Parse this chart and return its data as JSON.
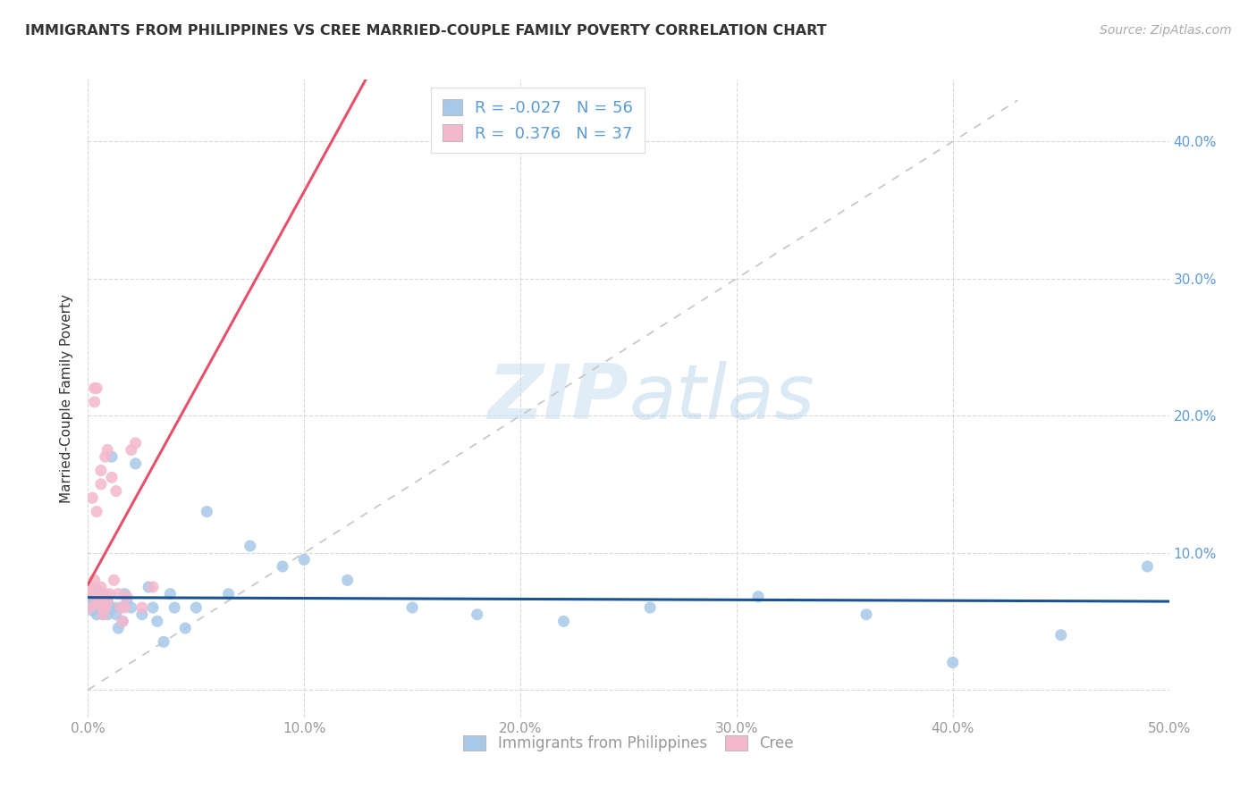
{
  "title": "IMMIGRANTS FROM PHILIPPINES VS CREE MARRIED-COUPLE FAMILY POVERTY CORRELATION CHART",
  "source": "Source: ZipAtlas.com",
  "ylabel": "Married-Couple Family Poverty",
  "xlim": [
    0.0,
    0.5
  ],
  "ylim": [
    -0.02,
    0.445
  ],
  "r_blue": -0.027,
  "n_blue": 56,
  "r_pink": 0.376,
  "n_pink": 37,
  "legend_labels": [
    "Immigrants from Philippines",
    "Cree"
  ],
  "blue_color": "#a8c8e8",
  "pink_color": "#f4b8cc",
  "blue_line_color": "#1a5294",
  "pink_line_color": "#e8506a",
  "diagonal_color": "#c8c8c8",
  "watermark_zip": "ZIP",
  "watermark_atlas": "atlas",
  "blue_scatter_x": [
    0.001,
    0.002,
    0.002,
    0.003,
    0.003,
    0.004,
    0.004,
    0.005,
    0.005,
    0.005,
    0.006,
    0.006,
    0.006,
    0.007,
    0.007,
    0.007,
    0.008,
    0.008,
    0.008,
    0.009,
    0.009,
    0.01,
    0.011,
    0.012,
    0.013,
    0.014,
    0.015,
    0.016,
    0.017,
    0.018,
    0.02,
    0.022,
    0.025,
    0.028,
    0.03,
    0.032,
    0.035,
    0.038,
    0.04,
    0.045,
    0.05,
    0.055,
    0.065,
    0.075,
    0.09,
    0.1,
    0.12,
    0.15,
    0.18,
    0.22,
    0.26,
    0.31,
    0.36,
    0.4,
    0.45,
    0.49
  ],
  "blue_scatter_y": [
    0.066,
    0.062,
    0.058,
    0.07,
    0.06,
    0.055,
    0.065,
    0.068,
    0.06,
    0.072,
    0.062,
    0.058,
    0.07,
    0.055,
    0.065,
    0.06,
    0.058,
    0.068,
    0.062,
    0.055,
    0.065,
    0.06,
    0.17,
    0.06,
    0.055,
    0.045,
    0.06,
    0.05,
    0.07,
    0.065,
    0.06,
    0.165,
    0.055,
    0.075,
    0.06,
    0.05,
    0.035,
    0.07,
    0.06,
    0.045,
    0.06,
    0.13,
    0.07,
    0.105,
    0.09,
    0.095,
    0.08,
    0.06,
    0.055,
    0.05,
    0.06,
    0.068,
    0.055,
    0.02,
    0.04,
    0.09
  ],
  "pink_scatter_x": [
    0.001,
    0.001,
    0.002,
    0.002,
    0.002,
    0.003,
    0.003,
    0.003,
    0.004,
    0.004,
    0.004,
    0.005,
    0.005,
    0.006,
    0.006,
    0.006,
    0.007,
    0.007,
    0.007,
    0.008,
    0.008,
    0.008,
    0.009,
    0.009,
    0.01,
    0.011,
    0.012,
    0.013,
    0.014,
    0.015,
    0.016,
    0.017,
    0.018,
    0.02,
    0.022,
    0.025,
    0.03
  ],
  "pink_scatter_y": [
    0.072,
    0.06,
    0.14,
    0.07,
    0.075,
    0.08,
    0.21,
    0.22,
    0.13,
    0.065,
    0.22,
    0.062,
    0.07,
    0.16,
    0.075,
    0.15,
    0.068,
    0.06,
    0.055,
    0.06,
    0.07,
    0.17,
    0.175,
    0.065,
    0.07,
    0.155,
    0.08,
    0.145,
    0.07,
    0.06,
    0.05,
    0.06,
    0.068,
    0.175,
    0.18,
    0.06,
    0.075
  ]
}
